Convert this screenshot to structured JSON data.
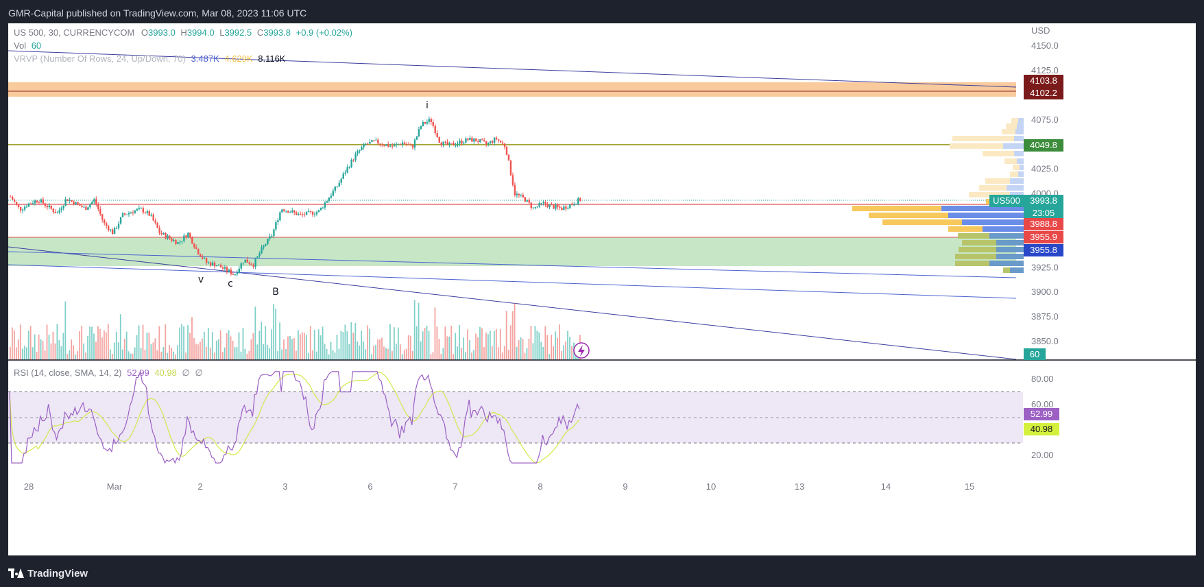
{
  "header": {
    "published": "GMR-Capital published on TradingView.com, Mar 08, 2023 11:06 UTC"
  },
  "legend": {
    "symbol": "US 500, 30, CURRENCYCOM",
    "o_label": "O",
    "o": "3993.0",
    "h_label": "H",
    "h": "3994.0",
    "l_label": "L",
    "l": "3992.5",
    "c_label": "C",
    "c": "3993.8",
    "change": "+0.9 (+0.02%)",
    "vol_label": "Vol",
    "vol": "60",
    "vrvp_label": "VRVP (Number Of Rows, 24, Up/Down, 70)",
    "vrvp_up": "3.487K",
    "vrvp_down": "4.629K",
    "vrvp_total": "8.116K",
    "rsi_label": "RSI (14, close, SMA, 14, 2)",
    "rsi_value": "52.99",
    "rsi_ma": "40.98",
    "empty1": "∅",
    "empty2": "∅"
  },
  "currency": "USD",
  "price_badges": {
    "r1": "4103.8",
    "r2": "4102.2",
    "s1": "4049.8",
    "symbol": "US500",
    "last": "3993.8",
    "countdown": "23:05",
    "red1": "3988.8",
    "red2": "3955.9",
    "blue": "3955.8",
    "vol": "60",
    "rsi": "52.99",
    "rsi_ma": "40.98"
  },
  "wave_labels": {
    "i": "i",
    "v": "v",
    "c": "c",
    "b": "B"
  },
  "colors": {
    "up": "#26a69a",
    "down": "#ef5350",
    "rsi": "#9c5fc4",
    "rsi_ma": "#d4e84a",
    "resistance_zone": "#f9cb9c",
    "support_zone": "#c6e6c6",
    "ma_line": "#8b8b00",
    "trendline": "#3d3d9e",
    "channel": "#4a63d0"
  },
  "footer": {
    "brand": "TradingView"
  },
  "chart_data": {
    "type": "candlestick",
    "yaxis_ticks": [
      4150.0,
      4125.0,
      4075.0,
      4025.0,
      4000.0,
      3925.0,
      3900.0,
      3875.0,
      3850.0
    ],
    "rsi_ticks": [
      80.0,
      60.0,
      20.0
    ],
    "rsi_bands": [
      70,
      50,
      30
    ],
    "xaxis_ticks": [
      "28",
      "Mar",
      "2",
      "3",
      "6",
      "7",
      "8",
      "9",
      "10",
      "13",
      "14",
      "15"
    ],
    "price_path": [
      [
        "Feb 28",
        3997
      ],
      [
        "",
        3984
      ],
      [
        "",
        3990
      ],
      [
        "",
        3994
      ],
      [
        "",
        3987
      ],
      [
        "",
        3980
      ],
      [
        "",
        3995
      ],
      [
        "",
        3990
      ],
      [
        "",
        3985
      ],
      [
        "",
        3994
      ],
      [
        "Mar 1",
        3970
      ],
      [
        "",
        3960
      ],
      [
        "",
        3978
      ],
      [
        "",
        3982
      ],
      [
        "",
        3984
      ],
      [
        "",
        3978
      ],
      [
        "",
        3960
      ],
      [
        "",
        3955
      ],
      [
        "",
        3950
      ],
      [
        "",
        3960
      ],
      [
        "",
        3942
      ],
      [
        "Mar 2",
        3930
      ],
      [
        "",
        3928
      ],
      [
        "",
        3923
      ],
      [
        "",
        3918
      ],
      [
        "",
        3933
      ],
      [
        "",
        3928
      ],
      [
        "",
        3945
      ],
      [
        "",
        3958
      ],
      [
        "",
        3985
      ],
      [
        "Mar 3",
        3982
      ],
      [
        "",
        3978
      ],
      [
        "",
        3980
      ],
      [
        "",
        3982
      ],
      [
        "",
        3995
      ],
      [
        "",
        4008
      ],
      [
        "",
        4025
      ],
      [
        "",
        4040
      ],
      [
        "",
        4050
      ],
      [
        "",
        4053
      ],
      [
        "Mar 6",
        4050
      ],
      [
        "",
        4048
      ],
      [
        "",
        4052
      ],
      [
        "",
        4047
      ],
      [
        "",
        4070
      ],
      [
        "",
        4075
      ],
      [
        "",
        4052
      ],
      [
        "",
        4049
      ],
      [
        "",
        4052
      ],
      [
        "",
        4055
      ],
      [
        "Mar 7",
        4054
      ],
      [
        "",
        4050
      ],
      [
        "",
        4056
      ],
      [
        "",
        4048
      ],
      [
        "",
        4000
      ],
      [
        "",
        3995
      ],
      [
        "",
        3985
      ],
      [
        "",
        3990
      ],
      [
        "Mar 8",
        3987
      ],
      [
        "",
        3985
      ],
      [
        "",
        3989
      ],
      [
        "",
        3994
      ]
    ],
    "volume_profile": "24 price rows, up (blue) / down (yellow) split at right edge",
    "levels": [
      4103.8,
      4102.2,
      4049.8,
      3988.8,
      3955.9,
      3955.8
    ]
  }
}
